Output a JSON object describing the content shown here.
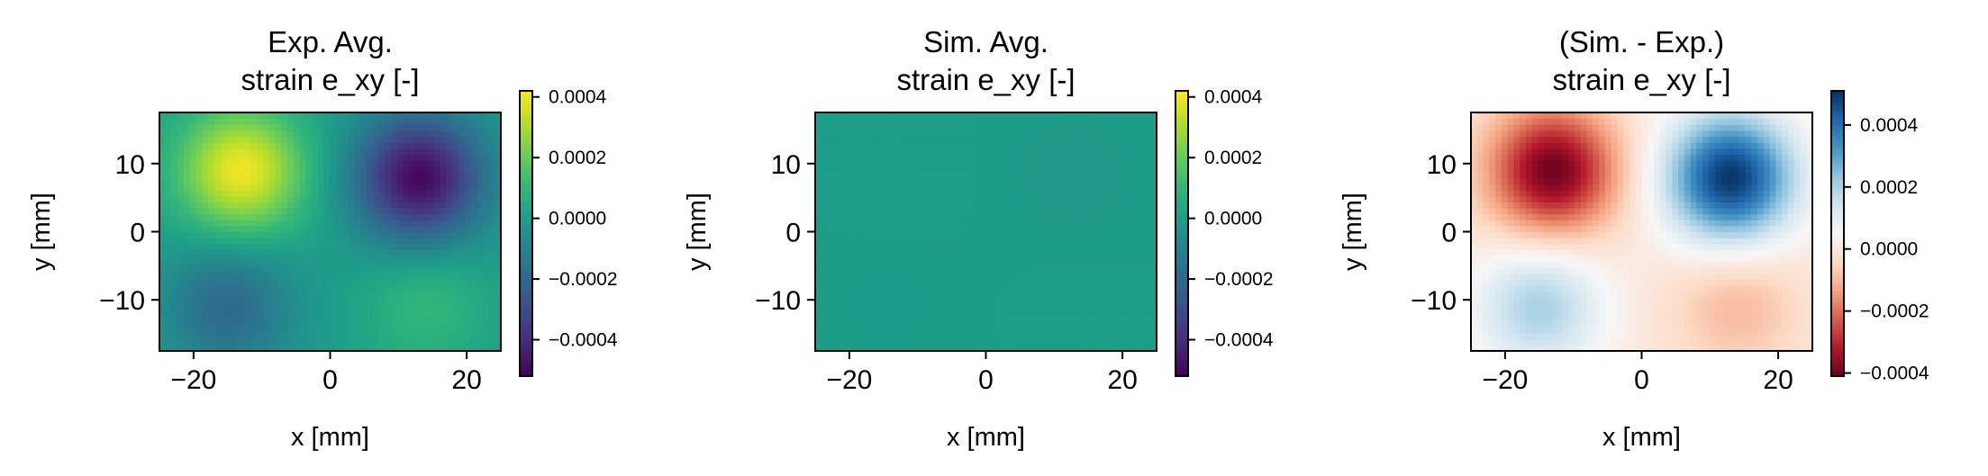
{
  "chart_data": [
    {
      "type": "heatmap",
      "title": "Exp. Avg.\nstrain e_xy [-]",
      "xlabel": "x [mm]",
      "ylabel": "y [mm]",
      "xlim": [
        -25,
        25
      ],
      "ylim": [
        -17.5,
        17.5
      ],
      "xticks": [
        -20,
        0,
        20
      ],
      "yticks": [
        -10,
        0,
        10
      ],
      "colormap": "viridis",
      "clim": [
        -0.00052,
        0.00042
      ],
      "colorbar_ticks": [
        0.0004,
        0.0002,
        0.0,
        -0.0002,
        -0.0004
      ],
      "field_peaks": [
        {
          "x": -13,
          "y": 9,
          "value": 0.0004
        },
        {
          "x": 13,
          "y": 8,
          "value": -0.0005
        },
        {
          "x": -15,
          "y": -11,
          "value": -0.0002
        },
        {
          "x": 14,
          "y": -11,
          "value": 0.0001
        }
      ]
    },
    {
      "type": "heatmap",
      "title": "Sim. Avg.\nstrain e_xy [-]",
      "xlabel": "x [mm]",
      "ylabel": "y [mm]",
      "xlim": [
        -25,
        25
      ],
      "ylim": [
        -17.5,
        17.5
      ],
      "xticks": [
        -20,
        0,
        20
      ],
      "yticks": [
        -10,
        0,
        10
      ],
      "colormap": "viridis",
      "clim": [
        -0.00052,
        0.00042
      ],
      "colorbar_ticks": [
        0.0004,
        0.0002,
        0.0,
        -0.0002,
        -0.0004
      ],
      "field_peaks": [
        {
          "x": -13,
          "y": 9,
          "value": 5e-06
        },
        {
          "x": 13,
          "y": 8,
          "value": -1.2e-05
        },
        {
          "x": -15,
          "y": -11,
          "value": -5e-06
        },
        {
          "x": 14,
          "y": -11,
          "value": 3e-06
        }
      ]
    },
    {
      "type": "heatmap",
      "title": "(Sim. - Exp.)\nstrain e_xy [-]",
      "xlabel": "x [mm]",
      "ylabel": "y [mm]",
      "xlim": [
        -25,
        25
      ],
      "ylim": [
        -17.5,
        17.5
      ],
      "xticks": [
        -20,
        0,
        20
      ],
      "yticks": [
        -10,
        0,
        10
      ],
      "colormap": "RdBu",
      "clim": [
        -0.00041,
        0.00051
      ],
      "colorbar_ticks": [
        0.0004,
        0.0002,
        0.0,
        -0.0002,
        -0.0004
      ],
      "field_peaks": [
        {
          "x": -13,
          "y": 9,
          "value": -0.0004
        },
        {
          "x": 13,
          "y": 8,
          "value": 0.0005
        },
        {
          "x": -15,
          "y": -11,
          "value": 0.0002
        },
        {
          "x": 14,
          "y": -11,
          "value": -0.0001
        }
      ]
    }
  ]
}
